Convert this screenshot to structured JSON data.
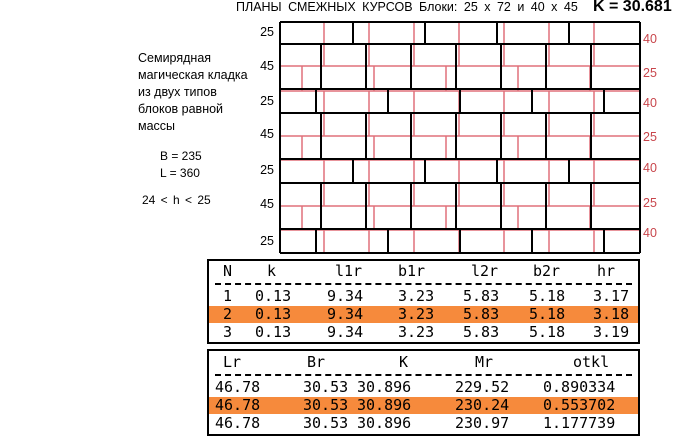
{
  "header": {
    "title": "ПЛАНЫ СМЕЖНЫХ КУРСОВ   Блоки: 25 х 72  и  40 х 45",
    "k_label": "K = 30.681"
  },
  "description": "Семирядная магическая кладка из двух типов блоков равной массы",
  "params": {
    "B": "B = 235",
    "L": "L = 360",
    "range": "24 < h < 25"
  },
  "left_labels": [
    "25",
    "45",
    "25",
    "45",
    "25",
    "45",
    "25"
  ],
  "right_labels": [
    "40",
    "25",
    "40",
    "25",
    "40",
    "25",
    "40"
  ],
  "colors": {
    "black_grid": "#000000",
    "red_grid": "#e0707a",
    "highlight": "#f68a3c"
  },
  "table1": {
    "headers": [
      "N",
      "k",
      "l1r",
      "b1r",
      "l2r",
      "b2r",
      "hr"
    ],
    "rows": [
      [
        "1",
        "0.13",
        "9.34",
        "3.23",
        "5.83",
        "5.18",
        "3.17"
      ],
      [
        "2",
        "0.13",
        "9.34",
        "3.23",
        "5.83",
        "5.18",
        "3.18"
      ],
      [
        "3",
        "0.13",
        "9.34",
        "3.23",
        "5.83",
        "5.18",
        "3.19"
      ]
    ],
    "highlight_row": 1
  },
  "table2": {
    "headers": [
      "Lr",
      "Br",
      "K",
      "Mr",
      "otkl"
    ],
    "rows": [
      [
        "46.78",
        "30.53",
        "30.896",
        "229.52",
        "0.890334"
      ],
      [
        "46.78",
        "30.53",
        "30.896",
        "230.24",
        "0.553702"
      ],
      [
        "46.78",
        "30.53",
        "30.896",
        "230.97",
        "1.177739"
      ]
    ],
    "highlight_row": 1
  }
}
